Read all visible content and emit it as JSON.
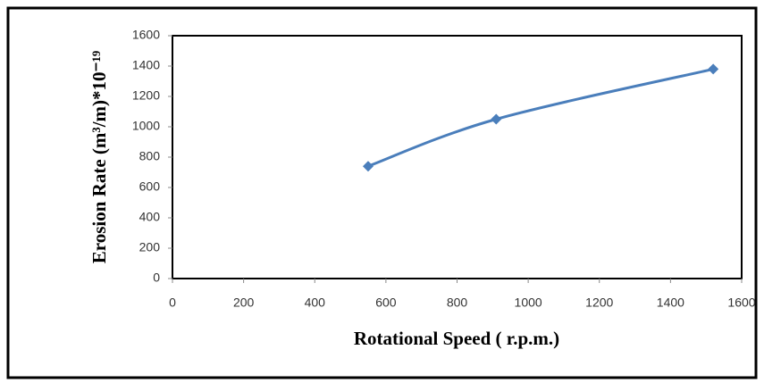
{
  "chart_data": {
    "type": "line",
    "x_label": "Rotational Speed ( r.p.m.)",
    "y_label": "Erosion Rate (m³/m)*10⁻¹⁹",
    "x": [
      550,
      910,
      1520
    ],
    "series": [
      {
        "color": "#4a7ebb",
        "values": [
          740,
          1050,
          1380
        ]
      }
    ],
    "xlim": [
      0,
      1600
    ],
    "xticks": [
      0,
      200,
      400,
      600,
      800,
      1000,
      1200,
      1400,
      1600
    ],
    "ylim": [
      0,
      1600
    ],
    "yticks": [
      0,
      200,
      400,
      600,
      800,
      1000,
      1200,
      1400,
      1600
    ],
    "smooth": true,
    "marker": "diamond"
  }
}
